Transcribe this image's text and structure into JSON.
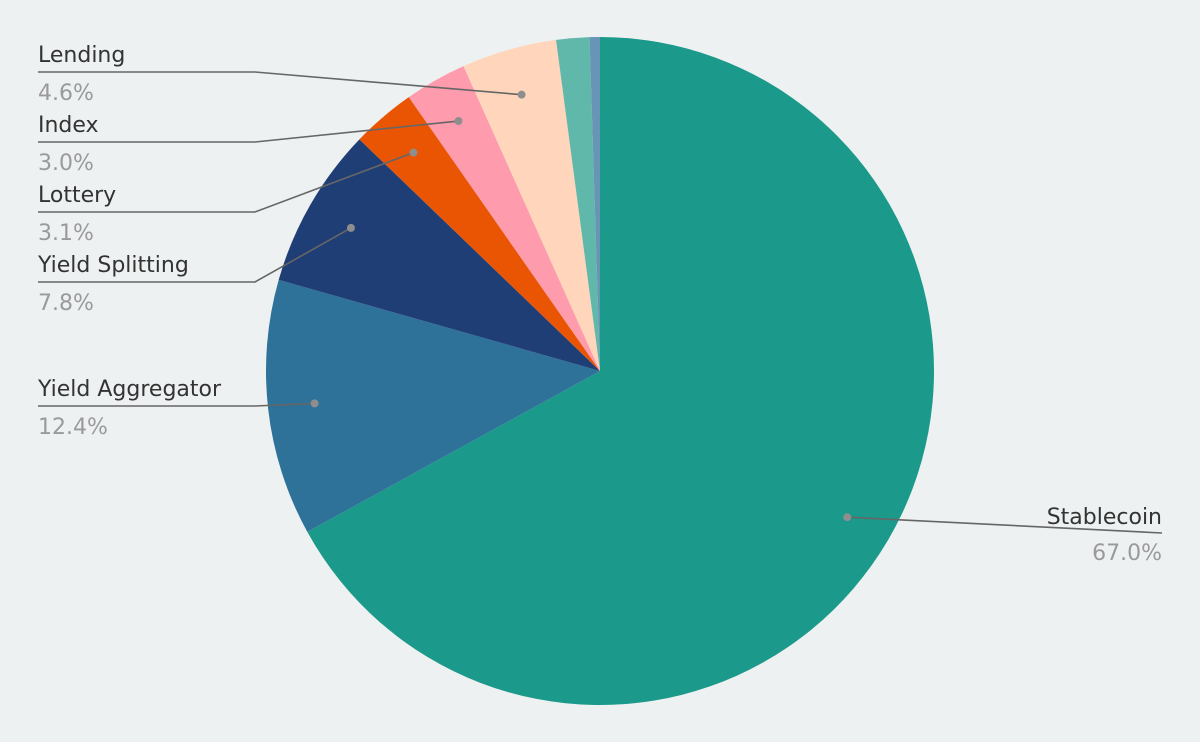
{
  "chart_data": {
    "type": "pie",
    "start_angle_deg": 0,
    "direction": "clockwise",
    "slices": [
      {
        "label": "Stablecoin",
        "percent_label": "67.0%",
        "value": 67.0,
        "color": "#1b998b",
        "labeled": true
      },
      {
        "label": "Yield Aggregator",
        "percent_label": "12.4%",
        "value": 12.4,
        "color": "#2e7199",
        "labeled": true
      },
      {
        "label": "Yield Splitting",
        "percent_label": "7.8%",
        "value": 7.8,
        "color": "#203e76",
        "labeled": true
      },
      {
        "label": "Lottery",
        "percent_label": "3.1%",
        "value": 3.1,
        "color": "#ea5504",
        "labeled": true
      },
      {
        "label": "Index",
        "percent_label": "3.0%",
        "value": 3.0,
        "color": "#fe9bac",
        "labeled": true
      },
      {
        "label": "Lending",
        "percent_label": "4.6%",
        "value": 4.6,
        "color": "#ffd6bb",
        "labeled": true
      },
      {
        "label": "",
        "percent_label": "",
        "value": 1.6,
        "color": "#5fb8aa",
        "labeled": false
      },
      {
        "label": "",
        "percent_label": "",
        "value": 0.5,
        "color": "#6894b6",
        "labeled": false
      }
    ],
    "legend": "none"
  }
}
